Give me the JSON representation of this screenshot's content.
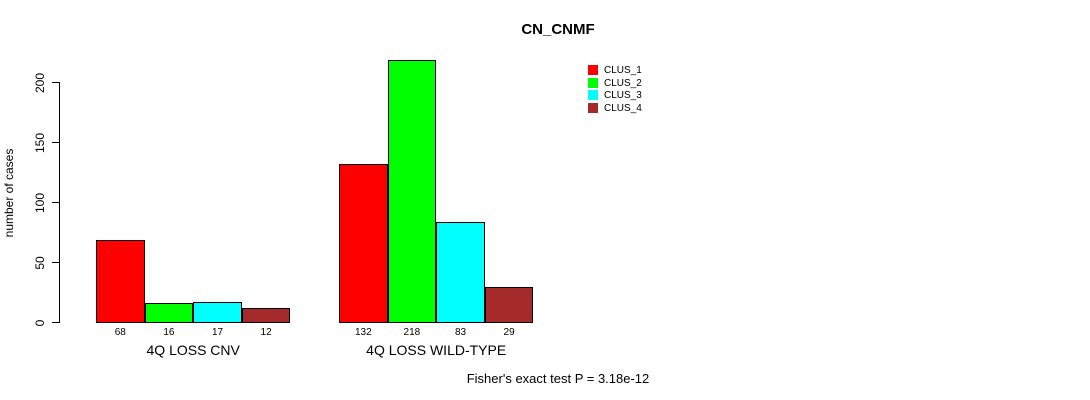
{
  "title": "CN_CNMF",
  "ylabel": "number of cases",
  "footer": "Fisher's exact test P = 3.18e-12",
  "chart_data": {
    "type": "bar",
    "title": "CN_CNMF",
    "xlabel": "",
    "ylabel": "number of cases",
    "categories": [
      "4Q LOSS CNV",
      "4Q LOSS WILD-TYPE"
    ],
    "series": [
      {
        "name": "CLUS_1",
        "color": "#FF0000",
        "values": [
          68,
          132
        ]
      },
      {
        "name": "CLUS_2",
        "color": "#00FF00",
        "values": [
          16,
          218
        ]
      },
      {
        "name": "CLUS_3",
        "color": "#00FFFF",
        "values": [
          17,
          83
        ]
      },
      {
        "name": "CLUS_4",
        "color": "#A52A2A",
        "values": [
          12,
          29
        ]
      }
    ],
    "bar_labels": [
      [
        "68",
        "16",
        "17",
        "12"
      ],
      [
        "132",
        "218",
        "83",
        "29"
      ]
    ],
    "yticks": [
      0,
      50,
      100,
      150,
      200
    ],
    "ylim": [
      0,
      220
    ],
    "grid": false,
    "legend_position": "top-right",
    "annotation": "Fisher's exact test P = 3.18e-12",
    "bar_border_color": "#000000",
    "text_color": "#000000",
    "background_color": "#FFFFFF"
  }
}
